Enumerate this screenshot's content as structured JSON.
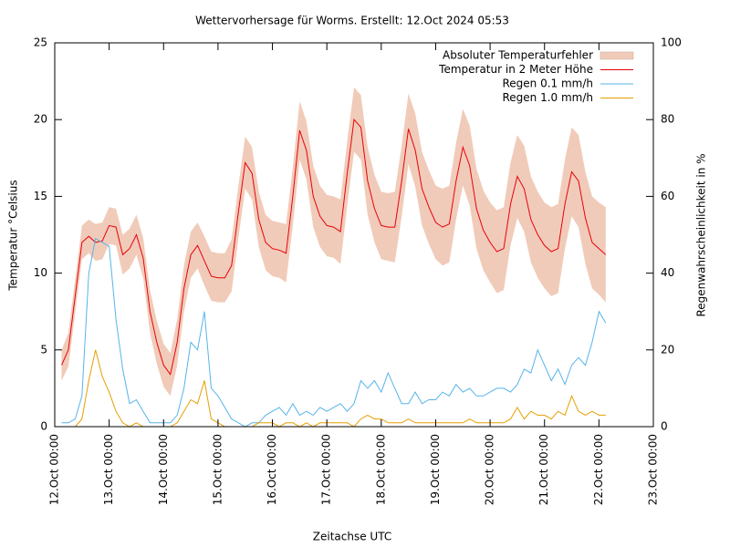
{
  "chart_data": {
    "type": "line",
    "title": "Wettervorhersage für Worms. Erstellt: 12.Oct 2024 05:53",
    "x_label": "Zeitachse UTC",
    "y_label": "Temperatur °Celsius",
    "y2_label": "Regenwahrscheinlichkeit in %",
    "x": [
      3,
      6,
      9,
      12,
      15,
      18,
      21,
      24,
      27,
      30,
      33,
      36,
      39,
      42,
      45,
      48,
      51,
      54,
      57,
      60,
      63,
      66,
      69,
      72,
      75,
      78,
      81,
      84,
      87,
      90,
      93,
      96,
      99,
      102,
      105,
      108,
      111,
      114,
      117,
      120,
      123,
      126,
      129,
      132,
      135,
      138,
      141,
      144,
      147,
      150,
      153,
      156,
      159,
      162,
      165,
      168,
      171,
      174,
      177,
      180,
      183,
      186,
      189,
      192,
      195,
      198,
      201,
      204,
      207,
      210,
      213,
      216,
      219,
      222,
      225,
      228,
      231,
      234,
      237,
      240,
      243
    ],
    "xlim": [
      0,
      264
    ],
    "xticks": [
      {
        "value": 0,
        "label": "12.Oct 00:00"
      },
      {
        "value": 24,
        "label": "13.Oct 00:00"
      },
      {
        "value": 48,
        "label": "14.Oct 00:00"
      },
      {
        "value": 72,
        "label": "15.Oct 00:00"
      },
      {
        "value": 96,
        "label": "16.Oct 00:00"
      },
      {
        "value": 120,
        "label": "17.Oct 00:00"
      },
      {
        "value": 144,
        "label": "18.Oct 00:00"
      },
      {
        "value": 168,
        "label": "19.Oct 00:00"
      },
      {
        "value": 192,
        "label": "20.Oct 00:00"
      },
      {
        "value": 216,
        "label": "21.Oct 00:00"
      },
      {
        "value": 240,
        "label": "22.Oct 00:00"
      },
      {
        "value": 264,
        "label": "23.Oct 00:00"
      }
    ],
    "ylim": [
      0,
      25
    ],
    "yticks": [
      0,
      5,
      10,
      15,
      20,
      25
    ],
    "y2lim": [
      0,
      100
    ],
    "y2ticks": [
      0,
      20,
      40,
      60,
      80,
      100
    ],
    "series": [
      {
        "name": "Absoluter Temperaturfehler",
        "color": "#f1cbb9",
        "values": [
          1.0,
          1.1,
          1.1,
          1.1,
          1.1,
          1.2,
          1.2,
          1.2,
          1.2,
          1.3,
          1.3,
          1.3,
          1.3,
          1.4,
          1.4,
          1.4,
          1.4,
          1.5,
          1.5,
          1.5,
          1.5,
          1.6,
          1.6,
          1.6,
          1.6,
          1.7,
          1.7,
          1.7,
          1.7,
          1.8,
          1.8,
          1.8,
          1.8,
          1.9,
          1.9,
          1.9,
          1.9,
          2.0,
          2.0,
          2.0,
          2.0,
          2.1,
          2.1,
          2.1,
          2.1,
          2.2,
          2.2,
          2.2,
          2.2,
          2.3,
          2.3,
          2.3,
          2.4,
          2.4,
          2.4,
          2.4,
          2.5,
          2.5,
          2.5,
          2.5,
          2.6,
          2.6,
          2.6,
          2.6,
          2.7,
          2.7,
          2.7,
          2.7,
          2.8,
          2.8,
          2.8,
          2.8,
          2.9,
          2.9,
          2.9,
          2.9,
          3.0,
          3.0,
          3.0,
          3.0,
          3.1
        ]
      },
      {
        "name": "Temperatur in 2 Meter Höhe",
        "color": "#e8000b",
        "values": [
          4.0,
          5.0,
          8.5,
          12.0,
          12.4,
          12.0,
          12.1,
          13.1,
          13.0,
          11.2,
          11.6,
          12.5,
          11.0,
          7.5,
          5.5,
          4.0,
          3.4,
          5.5,
          9.0,
          11.2,
          11.8,
          10.8,
          9.8,
          9.7,
          9.7,
          10.5,
          14.0,
          17.2,
          16.5,
          13.5,
          12.0,
          11.6,
          11.5,
          11.3,
          15.0,
          19.3,
          18.0,
          15.0,
          13.7,
          13.1,
          13.0,
          12.7,
          16.5,
          20.0,
          19.5,
          16.0,
          14.2,
          13.1,
          13.0,
          13.0,
          16.0,
          19.4,
          18.0,
          15.5,
          14.3,
          13.3,
          13.0,
          13.2,
          16.0,
          18.2,
          17.0,
          14.2,
          12.8,
          12.0,
          11.4,
          11.6,
          14.5,
          16.3,
          15.5,
          13.5,
          12.5,
          11.8,
          11.4,
          11.6,
          14.5,
          16.6,
          16.0,
          13.6,
          12.0,
          11.6,
          11.2
        ]
      },
      {
        "name": "Regen 0.1 mm/h",
        "color": "#56b4e9",
        "axis": "y2",
        "values": [
          1,
          1,
          2,
          8,
          40,
          49,
          48,
          47,
          28,
          15,
          6,
          7,
          4,
          1,
          1,
          1,
          1,
          3,
          10,
          22,
          20,
          30,
          10,
          8,
          5,
          2,
          1,
          0,
          1,
          1,
          3,
          4,
          5,
          3,
          6,
          3,
          4,
          3,
          5,
          4,
          5,
          6,
          4,
          6,
          12,
          10,
          12,
          9,
          14,
          10,
          6,
          6,
          9,
          6,
          7,
          7,
          9,
          8,
          11,
          9,
          10,
          8,
          8,
          9,
          10,
          10,
          9,
          11,
          15,
          14,
          20,
          16,
          12,
          15,
          11,
          16,
          18,
          16,
          22,
          30,
          27
        ]
      },
      {
        "name": "Regen 1.0 mm/h",
        "color": "#e69f00",
        "axis": "y2",
        "values": [
          0,
          0,
          0,
          2,
          12,
          20,
          13,
          9,
          4,
          1,
          0,
          1,
          0,
          0,
          0,
          0,
          0,
          1,
          4,
          7,
          6,
          12,
          2,
          1,
          0,
          0,
          0,
          0,
          0,
          1,
          1,
          1,
          0,
          1,
          1,
          0,
          1,
          0,
          1,
          1,
          1,
          1,
          1,
          0,
          2,
          3,
          2,
          2,
          1,
          1,
          1,
          2,
          1,
          1,
          1,
          1,
          1,
          1,
          1,
          1,
          2,
          1,
          1,
          1,
          1,
          1,
          2,
          5,
          2,
          4,
          3,
          3,
          2,
          4,
          3,
          8,
          4,
          3,
          4,
          3,
          3
        ]
      }
    ]
  }
}
